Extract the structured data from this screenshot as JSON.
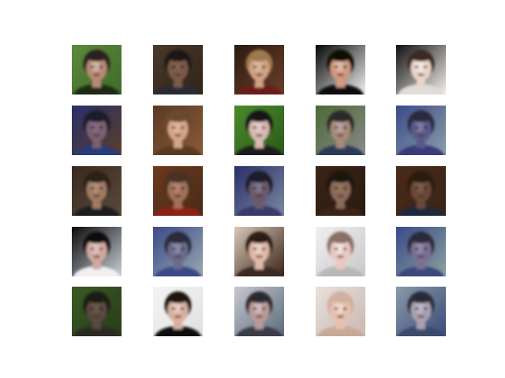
{
  "figure": {
    "background": "#ffffff",
    "rows": 5,
    "cols": 5,
    "tiles": [
      {
        "bg": "#5c8a3a",
        "bg2": "#3f6a2a",
        "skin": "#b88a74",
        "hair": "#2a2420",
        "shirt": "#1c2a18",
        "glare": "#e8e0d8"
      },
      {
        "bg": "#4a3a2a",
        "bg2": "#2e2418",
        "skin": "#7a5a48",
        "hair": "#1e1814",
        "shirt": "#2a2a30",
        "glare": "#8a6a58"
      },
      {
        "bg": "#2a1a12",
        "bg2": "#6a4028",
        "skin": "#d0a084",
        "hair": "#a07850",
        "shirt": "#6a1e14",
        "glare": "#f0d0b0"
      },
      {
        "bg": "#050505",
        "bg2": "#f2f2f2",
        "skin": "#d09a80",
        "hair": "#0a0806",
        "shirt": "#0a0a0a",
        "glare": "#f4e0d0"
      },
      {
        "bg": "#101010",
        "bg2": "#f4f0ec",
        "skin": "#e8d4c8",
        "hair": "#3a2a20",
        "shirt": "#e0dcd8",
        "glare": "#ffffff"
      },
      {
        "bg": "#2a2e6a",
        "bg2": "#5a3e2a",
        "skin": "#7a6070",
        "hair": "#1a1a2a",
        "shirt": "#2a3a7a",
        "glare": "#8a7a9a"
      },
      {
        "bg": "#5a3a24",
        "bg2": "#8a5a38",
        "skin": "#d4a48a",
        "hair": "#6a4a30",
        "shirt": "#5a3a24",
        "glare": "#f0c8b0"
      },
      {
        "bg": "#4a8a2a",
        "bg2": "#2a5a1a",
        "skin": "#d8b8b0",
        "hair": "#141414",
        "shirt": "#1a1a1a",
        "glare": "#f0e0e0"
      },
      {
        "bg": "#4a6a34",
        "bg2": "#8a8a8a",
        "skin": "#a88a7a",
        "hair": "#2a2a2a",
        "shirt": "#2a3a5a",
        "glare": "#c8c0c8"
      },
      {
        "bg": "#3a4a8a",
        "bg2": "#8aa0a8",
        "skin": "#5a5a8a",
        "hair": "#2a2a3a",
        "shirt": "#3a3a7a",
        "glare": "#a0a0c8"
      },
      {
        "bg": "#3a2a1e",
        "bg2": "#5a4a3a",
        "skin": "#a07a64",
        "hair": "#2a2018",
        "shirt": "#1e1e24",
        "glare": "#c8a088"
      },
      {
        "bg": "#6a3a1e",
        "bg2": "#4a2a18",
        "skin": "#a0705a",
        "hair": "#4a3020",
        "shirt": "#8a2418",
        "glare": "#c89a80"
      },
      {
        "bg": "#2a2e6a",
        "bg2": "#7a8aa0",
        "skin": "#6a5a6a",
        "hair": "#1e1e2a",
        "shirt": "#3a3a6a",
        "glare": "#9a9ab8"
      },
      {
        "bg": "#3a2418",
        "bg2": "#2a1a10",
        "skin": "#8a6a5a",
        "hair": "#1a1410",
        "shirt": "#3a2418",
        "glare": "#a0806a"
      },
      {
        "bg": "#4a2a18",
        "bg2": "#3a2418",
        "skin": "#6a4a3a",
        "hair": "#2a1a10",
        "shirt": "#1e2a3a",
        "glare": "#8a7060"
      },
      {
        "bg": "#0a0a0a",
        "bg2": "#c8d0d8",
        "skin": "#d0a8a0",
        "hair": "#0a0808",
        "shirt": "#f0f0f0",
        "glare": "#f0e0dc"
      },
      {
        "bg": "#3a4a8a",
        "bg2": "#9aa8b0",
        "skin": "#6a6a8a",
        "hair": "#2a2a3a",
        "shirt": "#3a4a8a",
        "glare": "#a8b0c8"
      },
      {
        "bg": "#d8c8b8",
        "bg2": "#3a2418",
        "skin": "#e0b8a8",
        "hair": "#2a1a12",
        "shirt": "#3a2a20",
        "glare": "#f8e8e0"
      },
      {
        "bg": "#f0f0f0",
        "bg2": "#c8c8c8",
        "skin": "#e8c8c0",
        "hair": "#8a7064",
        "shirt": "#b8b8b8",
        "glare": "#ffffff"
      },
      {
        "bg": "#3a4a8a",
        "bg2": "#8aa0a0",
        "skin": "#7a7090",
        "hair": "#2a2a3a",
        "shirt": "#3a4a7a",
        "glare": "#a8a8c8"
      },
      {
        "bg": "#3a5a24",
        "bg2": "#2a3a1a",
        "skin": "#5a4a40",
        "hair": "#1a1a18",
        "shirt": "#2a2a24",
        "glare": "#7a6a5a"
      },
      {
        "bg": "#f4f4f4",
        "bg2": "#e0e0e0",
        "skin": "#d8b0a0",
        "hair": "#1a1410",
        "shirt": "#101010",
        "glare": "#f8e8e0"
      },
      {
        "bg": "#c8c8d0",
        "bg2": "#5a6a7a",
        "skin": "#b89a98",
        "hair": "#2a2a30",
        "shirt": "#3a3a4a",
        "glare": "#e8e0e0"
      },
      {
        "bg": "#e8e0dc",
        "bg2": "#c8b8b0",
        "skin": "#e8c0b0",
        "hair": "#d0b0a0",
        "shirt": "#c8a898",
        "glare": "#fff4ee"
      },
      {
        "bg": "#8a9aa8",
        "bg2": "#3a4a7a",
        "skin": "#a8a0b0",
        "hair": "#2a2a3a",
        "shirt": "#3a4a6a",
        "glare": "#d0d0e0"
      }
    ]
  }
}
